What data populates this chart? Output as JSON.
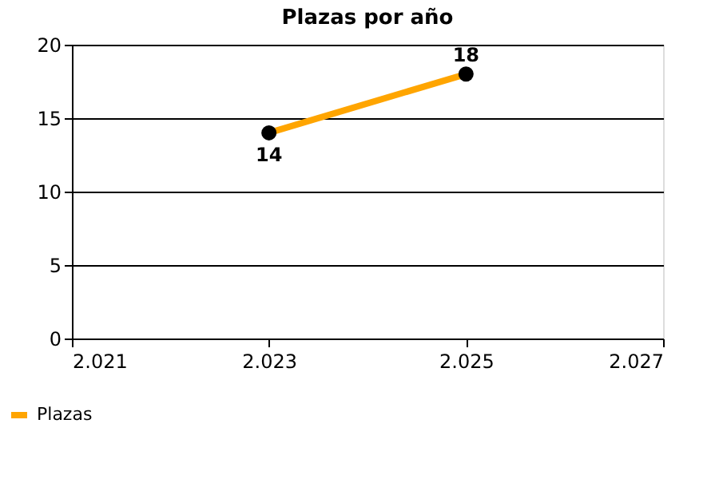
{
  "chart_data": {
    "type": "line",
    "title": "Plazas por año",
    "x": [
      2023,
      2025
    ],
    "series": [
      {
        "name": "Plazas",
        "color": "#ffa500",
        "values": [
          14,
          18
        ]
      }
    ],
    "xlim": [
      2021,
      2027
    ],
    "xticks": [
      {
        "value": 2021,
        "label": "2.021"
      },
      {
        "value": 2023,
        "label": "2.023"
      },
      {
        "value": 2025,
        "label": "2.025"
      },
      {
        "value": 2027,
        "label": "2.027"
      }
    ],
    "ylim": [
      0,
      20
    ],
    "yticks": [
      0,
      5,
      10,
      15,
      20
    ],
    "grid": "y",
    "legend": "bottom left",
    "marker": "circle",
    "line_style": "solid",
    "data_labels": true
  }
}
